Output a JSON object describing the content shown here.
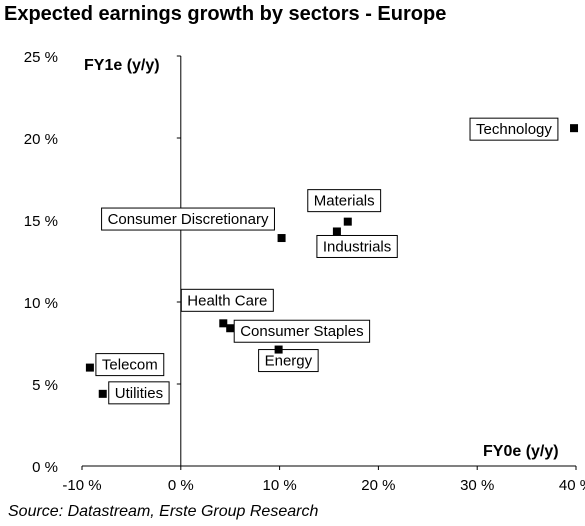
{
  "title": "Expected earnings growth by sectors - Europe",
  "source": "Source: Datastream, Erste Group Research",
  "chart_data": {
    "type": "scatter",
    "title": "Expected earnings growth by sectors - Europe",
    "xlabel": "FY0e (y/y)",
    "ylabel": "FY1e (y/y)",
    "xlim": [
      -10,
      40
    ],
    "ylim": [
      0,
      25
    ],
    "x_ticks": [
      -10,
      0,
      10,
      20,
      30,
      40
    ],
    "y_ticks": [
      0,
      5,
      10,
      15,
      20,
      25
    ],
    "x_tick_labels": [
      "-10 %",
      "0 %",
      "10 %",
      "20 %",
      "30 %",
      "40 %"
    ],
    "y_tick_labels": [
      "0 %",
      "5 %",
      "10 %",
      "15 %",
      "20 %",
      "25 %"
    ],
    "grid": false,
    "legend": "none",
    "marker_color": "#000000",
    "points": [
      {
        "label": "Technology",
        "x": 39.8,
        "y": 20.6
      },
      {
        "label": "Materials",
        "x": 16.9,
        "y": 14.9
      },
      {
        "label": "Industrials",
        "x": 15.8,
        "y": 14.3
      },
      {
        "label": "Consumer Discretionary",
        "x": 10.2,
        "y": 13.9
      },
      {
        "label": "Health Care",
        "x": 4.3,
        "y": 8.7
      },
      {
        "label": "Consumer Staples",
        "x": 5.0,
        "y": 8.4
      },
      {
        "label": "Energy",
        "x": 9.9,
        "y": 7.1
      },
      {
        "label": "Telecom",
        "x": -9.2,
        "y": 6.0
      },
      {
        "label": "Utilities",
        "x": -7.9,
        "y": 4.4
      }
    ]
  }
}
